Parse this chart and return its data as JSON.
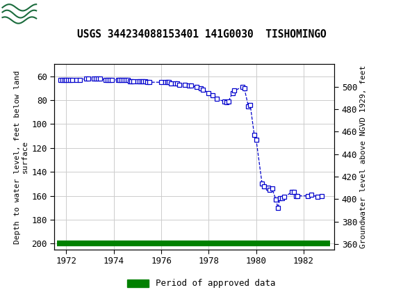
{
  "title": "USGS 344234088153401 141G0030  TISHOMINGO",
  "ylabel_left": "Depth to water level, feet below land\nsurface",
  "ylabel_right": "Groundwater level above NGVD 1929, feet",
  "header_color": "#1a6b3c",
  "plot_bg": "#ffffff",
  "grid_color": "#cccccc",
  "line_color": "#0000cc",
  "legend_label": "Period of approved data",
  "approved_bar_color": "#008000",
  "xlim": [
    1971.5,
    1983.3
  ],
  "ylim_left": [
    205,
    50
  ],
  "ylim_right": [
    355,
    520
  ],
  "xticks": [
    1972,
    1974,
    1976,
    1978,
    1980,
    1982
  ],
  "yticks_left": [
    60,
    80,
    100,
    120,
    140,
    160,
    180,
    200
  ],
  "yticks_right": [
    360,
    380,
    400,
    420,
    440,
    460,
    480,
    500
  ],
  "data_x": [
    1971.75,
    1971.83,
    1971.92,
    1972.0,
    1972.08,
    1972.17,
    1972.25,
    1972.42,
    1972.58,
    1972.83,
    1972.92,
    1973.17,
    1973.25,
    1973.33,
    1973.42,
    1973.67,
    1973.75,
    1973.83,
    1973.92,
    1974.17,
    1974.25,
    1974.33,
    1974.42,
    1974.5,
    1974.58,
    1974.67,
    1974.75,
    1974.83,
    1975.0,
    1975.08,
    1975.17,
    1975.25,
    1975.33,
    1975.42,
    1975.5,
    1976.0,
    1976.17,
    1976.25,
    1976.33,
    1976.42,
    1976.58,
    1976.67,
    1976.75,
    1977.0,
    1977.17,
    1977.25,
    1977.5,
    1977.67,
    1977.75,
    1978.0,
    1978.17,
    1978.33,
    1978.67,
    1978.75,
    1978.83,
    1979.0,
    1979.08,
    1979.42,
    1979.5,
    1979.67,
    1979.75,
    1979.92,
    1980.0,
    1980.25,
    1980.33,
    1980.5,
    1980.58,
    1980.67,
    1980.83,
    1980.92,
    1981.0,
    1981.08,
    1981.17,
    1981.5,
    1981.58,
    1981.67,
    1981.75,
    1982.17,
    1982.33,
    1982.58,
    1982.75
  ],
  "data_y": [
    63,
    63,
    63,
    63,
    63,
    63,
    63,
    63,
    63,
    62,
    62,
    62,
    62,
    62,
    62,
    63,
    63,
    63,
    63,
    63,
    63,
    63,
    63,
    63,
    63,
    64,
    64,
    64,
    64,
    64,
    64,
    64,
    64,
    65,
    65,
    65,
    65,
    65,
    65,
    66,
    66,
    66,
    67,
    67,
    68,
    68,
    69,
    70,
    71,
    74,
    76,
    79,
    81,
    82,
    81,
    74,
    72,
    69,
    70,
    85,
    84,
    109,
    113,
    150,
    152,
    153,
    155,
    154,
    163,
    170,
    162,
    162,
    161,
    157,
    157,
    160,
    160,
    160,
    159,
    161,
    160
  ],
  "approved_x_start": 1971.6,
  "approved_x_end": 1983.1
}
